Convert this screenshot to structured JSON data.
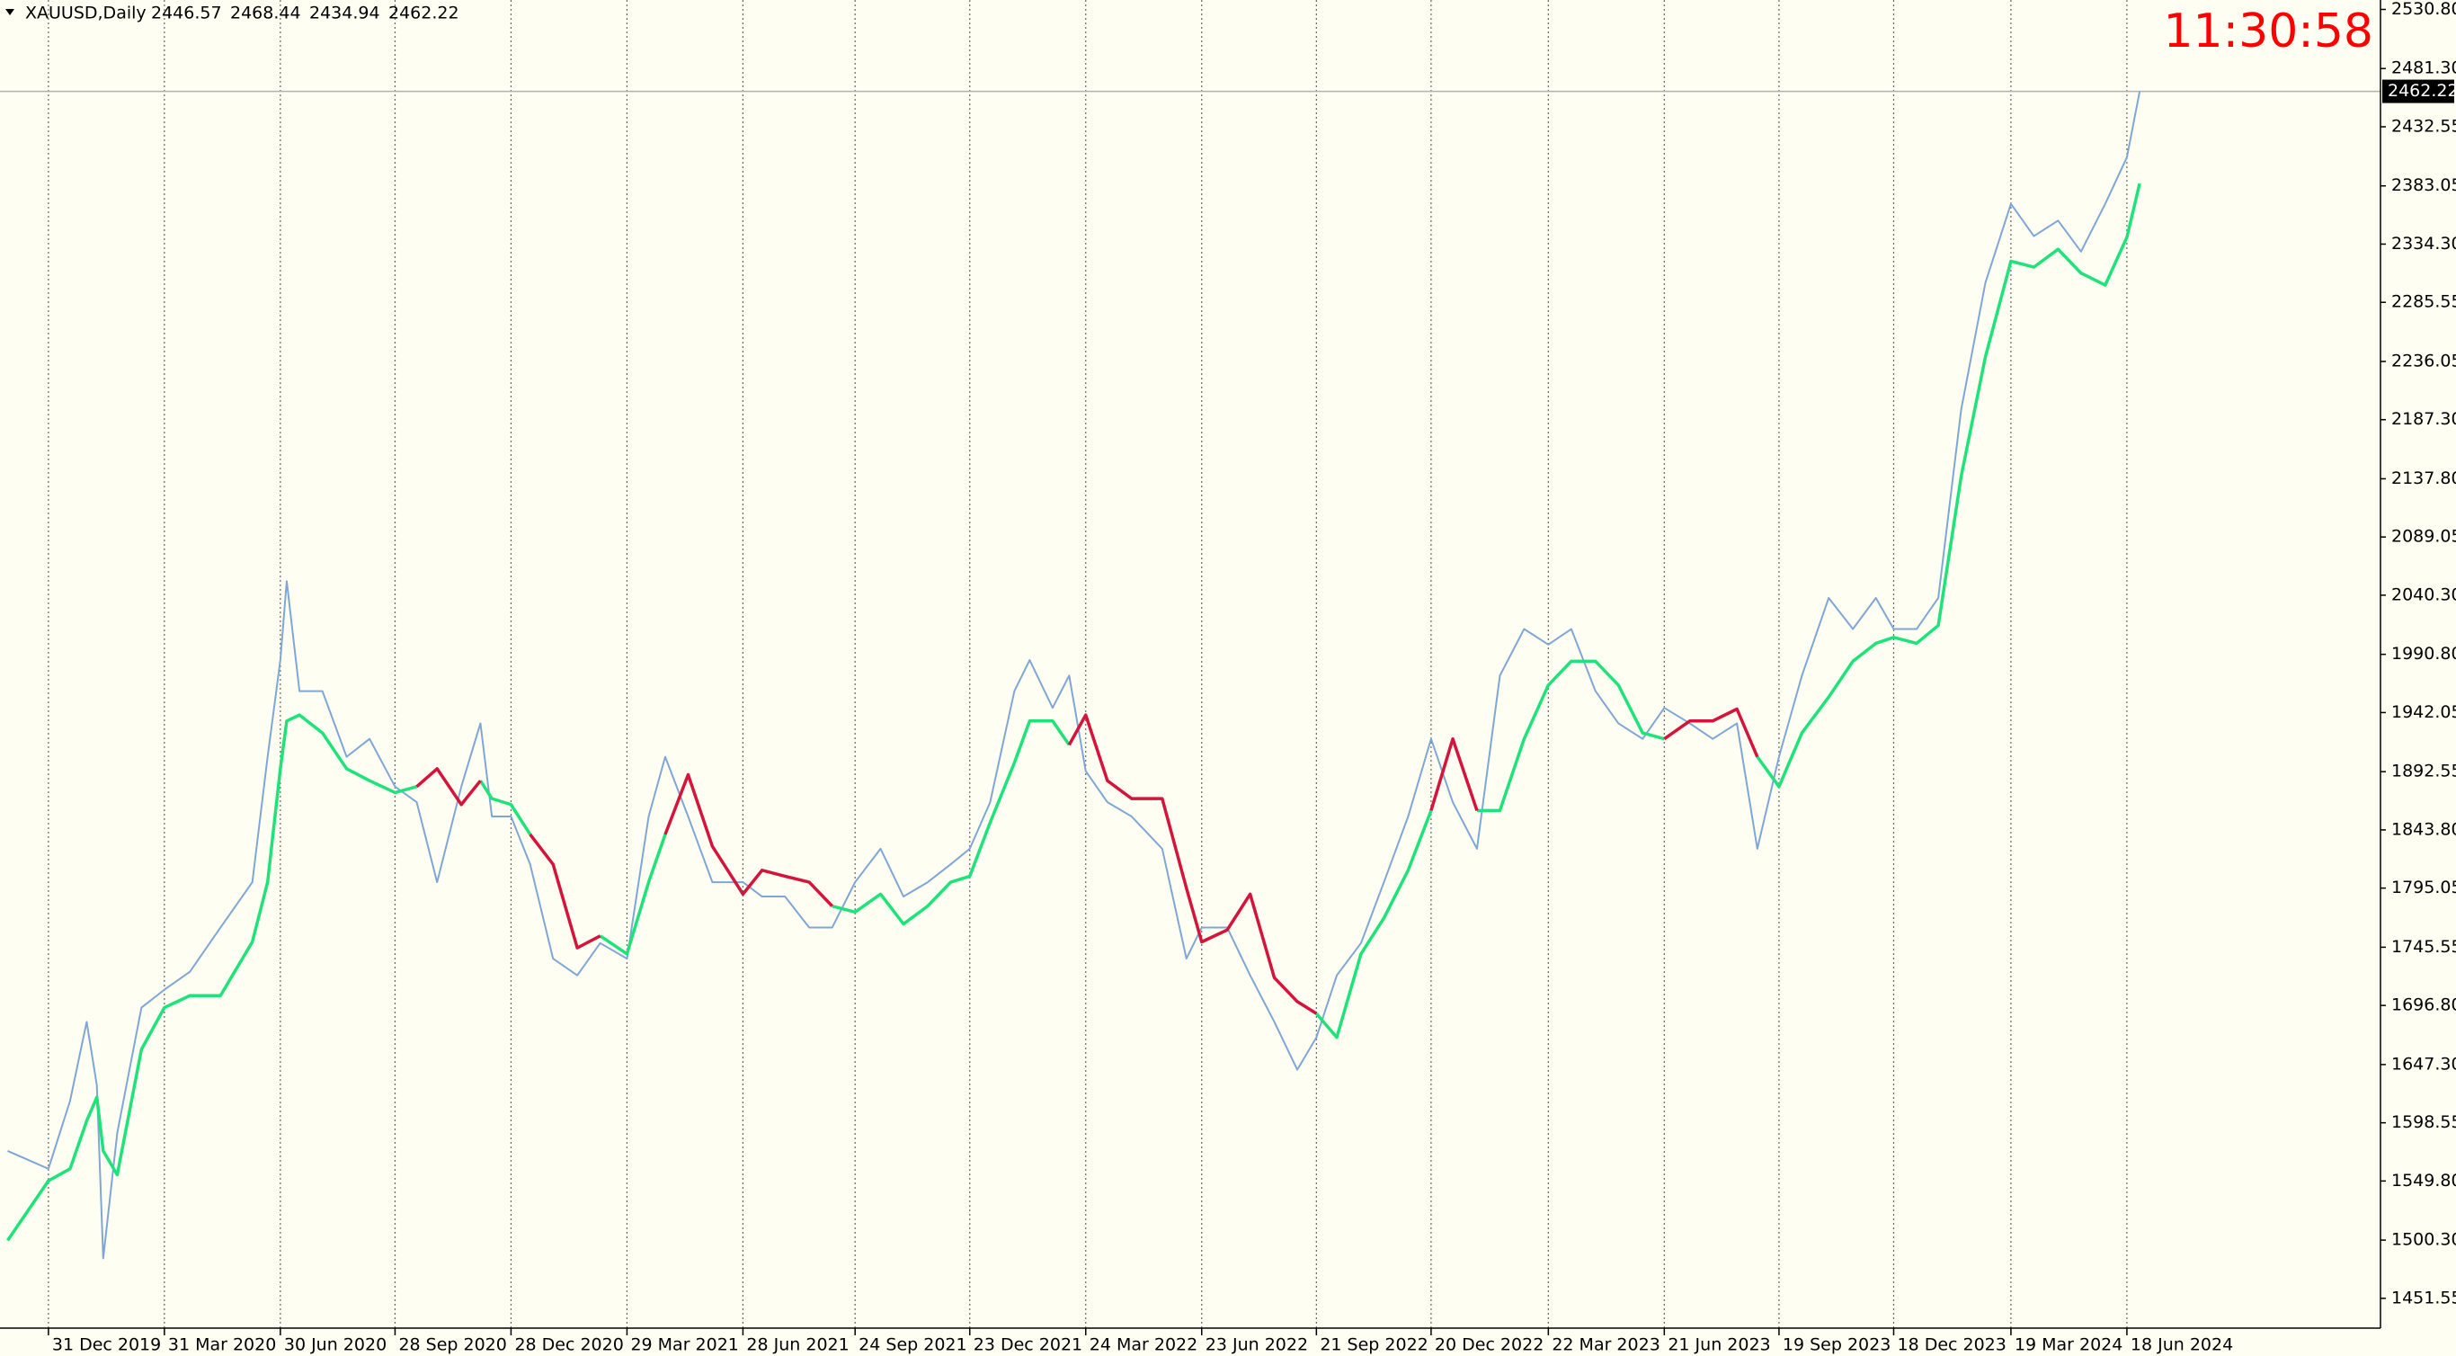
{
  "chart_data": {
    "type": "line",
    "symbol": "XAUUSD,Daily",
    "ohlc": [
      2446.57,
      2468.44,
      2434.94,
      2462.22
    ],
    "clock": "11:30:58",
    "background": "#fffef2",
    "grid": true,
    "xlim": [
      "23 Nov 2019",
      "3 Jan 2025"
    ],
    "ylim": [
      1426.6,
      2538.7
    ],
    "yticks": [
      {
        "value": 2530.8,
        "label": "2530.80"
      },
      {
        "value": 2481.3,
        "label": "2481.30"
      },
      2432.55,
      2383.05,
      {
        "value": 2334.3,
        "label": "2334.30"
      },
      2285.55,
      2236.05,
      {
        "value": 2187.3,
        "label": "2187.30"
      },
      {
        "value": 2137.8,
        "label": "2137.80"
      },
      2089.05,
      {
        "value": 2040.3,
        "label": "2040.30"
      },
      {
        "value": 1990.8,
        "label": "1990.80"
      },
      1942.05,
      1892.55,
      {
        "value": 1843.8,
        "label": "1843.80"
      },
      1795.05,
      1745.55,
      {
        "value": 1696.8,
        "label": "1696.80"
      },
      {
        "value": 1647.3,
        "label": "1647.30"
      },
      1598.55,
      {
        "value": 1549.8,
        "label": "1549.80"
      },
      {
        "value": 1500.3,
        "label": "1500.30"
      },
      1451.55
    ],
    "xticks": [
      "31 Dec 2019",
      "31 Mar 2020",
      "30 Jun 2020",
      "28 Sep 2020",
      "28 Dec 2020",
      "29 Mar 2021",
      "28 Jun 2021",
      "24 Sep 2021",
      "23 Dec 2021",
      "24 Mar 2022",
      "23 Jun 2022",
      "21 Sep 2022",
      "20 Dec 2022",
      "22 Mar 2023",
      "21 Jun 2023",
      "19 Sep 2023",
      "18 Dec 2023",
      "19 Mar 2024",
      "18 Jun 2024"
    ],
    "x": [
      "29 Nov 2019",
      "31 Dec 2019",
      "17 Jan 2020",
      "30 Jan 2020",
      "7 Feb 2020",
      "12 Feb 2020",
      "23 Feb 2020",
      "13 Mar 2020",
      "31 Mar 2020",
      "20 Apr 2020",
      "14 May 2020",
      "8 Jun 2020",
      "20 Jun 2020",
      "30 Jun 2020",
      "5 Jul 2020",
      "15 Jul 2020",
      "2 Aug 2020",
      "21 Aug 2020",
      "8 Sep 2020",
      "28 Sep 2020",
      "15 Oct 2020",
      "31 Oct 2020",
      "19 Nov 2020",
      "4 Dec 2020",
      "13 Dec 2020",
      "28 Dec 2020",
      "12 Jan 2021",
      "30 Jan 2021",
      "18 Feb 2021",
      "8 Mar 2021",
      "29 Mar 2021",
      "15 Apr 2021",
      "28 Apr 2021",
      "16 May 2021",
      "4 Jun 2021",
      "28 Jun 2021",
      "13 Jul 2021",
      "31 Jul 2021",
      "19 Aug 2021",
      "6 Sep 2021",
      "24 Sep 2021",
      "14 Oct 2021",
      "1 Nov 2021",
      "20 Nov 2021",
      "8 Dec 2021",
      "23 Dec 2021",
      "8 Jan 2022",
      "27 Jan 2022",
      "8 Feb 2022",
      "26 Feb 2022",
      "11 Mar 2022",
      "24 Mar 2022",
      "10 Apr 2022",
      "29 Apr 2022",
      "23 May 2022",
      "11 Jun 2022",
      "23 Jun 2022",
      "13 Jul 2022",
      "31 Jul 2022",
      "19 Aug 2022",
      "6 Sep 2022",
      "21 Sep 2022",
      "7 Oct 2022",
      "26 Oct 2022",
      "13 Nov 2022",
      "2 Dec 2022",
      "20 Dec 2022",
      "6 Jan 2023",
      "25 Jan 2023",
      "12 Feb 2023",
      "3 Mar 2023",
      "22 Mar 2023",
      "9 Apr 2023",
      "28 Apr 2023",
      "16 May 2023",
      "4 Jun 2023",
      "21 Jun 2023",
      "11 Jul 2023",
      "29 Jul 2023",
      "17 Aug 2023",
      "2 Sep 2023",
      "19 Sep 2023",
      "7 Oct 2023",
      "28 Oct 2023",
      "16 Nov 2023",
      "4 Dec 2023",
      "18 Dec 2023",
      "5 Jan 2024",
      "22 Jan 2024",
      "9 Feb 2024",
      "28 Feb 2024",
      "19 Mar 2024",
      "6 Apr 2024",
      "25 Apr 2024",
      "13 May 2024",
      "1 Jun 2024",
      "18 Jun 2024",
      "28 Jun 2024"
    ],
    "series": [
      {
        "color": "#7fa7d6",
        "values": [
          1575,
          1560,
          1617,
          1683,
          1630,
          1485,
          1590,
          1695,
          1710,
          1725,
          1762,
          1800,
          1905,
          1986,
          2052,
          1960,
          1960,
          1905,
          1920,
          1880,
          1867,
          1800,
          1880,
          1933,
          1855,
          1855,
          1815,
          1736,
          1722,
          1749,
          1736,
          1855,
          1905,
          1855,
          1800,
          1800,
          1788,
          1788,
          1762,
          1762,
          1800,
          1828,
          1788,
          1800,
          1815,
          1828,
          1867,
          1960,
          1986,
          1946,
          1973,
          1893,
          1867,
          1855,
          1828,
          1736,
          1762,
          1762,
          1722,
          1683,
          1643,
          1670,
          1722,
          1749,
          1800,
          1855,
          1920,
          1867,
          1828,
          1973,
          2012,
          1999,
          2012,
          1960,
          1933,
          1920,
          1946,
          1933,
          1920,
          1933,
          1828,
          1905,
          1973,
          2038,
          2012,
          2038,
          2012,
          2012,
          2038,
          2196,
          2302,
          2368,
          2341,
          2354,
          2328,
          2368,
          2407,
          2462
        ]
      },
      {
        "color": "#1fe37a",
        "values": [
          1500,
          1550,
          1560,
          1600,
          1620,
          1575,
          1555,
          1660,
          1695,
          1705,
          1705,
          1750,
          1800,
          1895,
          1935,
          1940,
          1925,
          1895,
          1885,
          1875,
          1880,
          null,
          null,
          1885,
          1870,
          1865,
          1840,
          null,
          null,
          1755,
          1740,
          1800,
          1840,
          null,
          null,
          null,
          null,
          null,
          null,
          1780,
          1775,
          1790,
          1765,
          1780,
          1800,
          1805,
          1850,
          1900,
          1935,
          1935,
          1915,
          null,
          null,
          null,
          null,
          null,
          1750,
          1760,
          null,
          null,
          null,
          1690,
          1670,
          1740,
          1770,
          1810,
          1860,
          null,
          1860,
          1860,
          1920,
          1965,
          1985,
          1985,
          1965,
          1925,
          1920,
          null,
          null,
          null,
          1905,
          1880,
          1925,
          1955,
          1985,
          2000,
          2005,
          2000,
          2015,
          2140,
          2240,
          2320,
          2315,
          2330,
          2310,
          2300,
          2340,
          2385
        ]
      },
      {
        "color": "#d4143c",
        "values": [
          null,
          null,
          null,
          null,
          null,
          null,
          null,
          null,
          null,
          null,
          null,
          null,
          null,
          null,
          null,
          null,
          null,
          null,
          null,
          null,
          1880,
          1895,
          1865,
          1885,
          null,
          null,
          1840,
          1815,
          1745,
          1755,
          null,
          null,
          1840,
          1890,
          1830,
          1790,
          1810,
          1805,
          1800,
          1780,
          null,
          null,
          null,
          null,
          null,
          null,
          null,
          null,
          null,
          null,
          1915,
          1940,
          1885,
          1870,
          1870,
          1795,
          1750,
          1760,
          1790,
          1720,
          1700,
          1690,
          null,
          null,
          null,
          null,
          1860,
          1920,
          1860,
          null,
          null,
          null,
          null,
          null,
          null,
          null,
          1920,
          1935,
          1935,
          1945,
          1905,
          null,
          null,
          null,
          null,
          null,
          null,
          null,
          null,
          null,
          null,
          null,
          null,
          null,
          null,
          null,
          null,
          null
        ]
      }
    ]
  }
}
